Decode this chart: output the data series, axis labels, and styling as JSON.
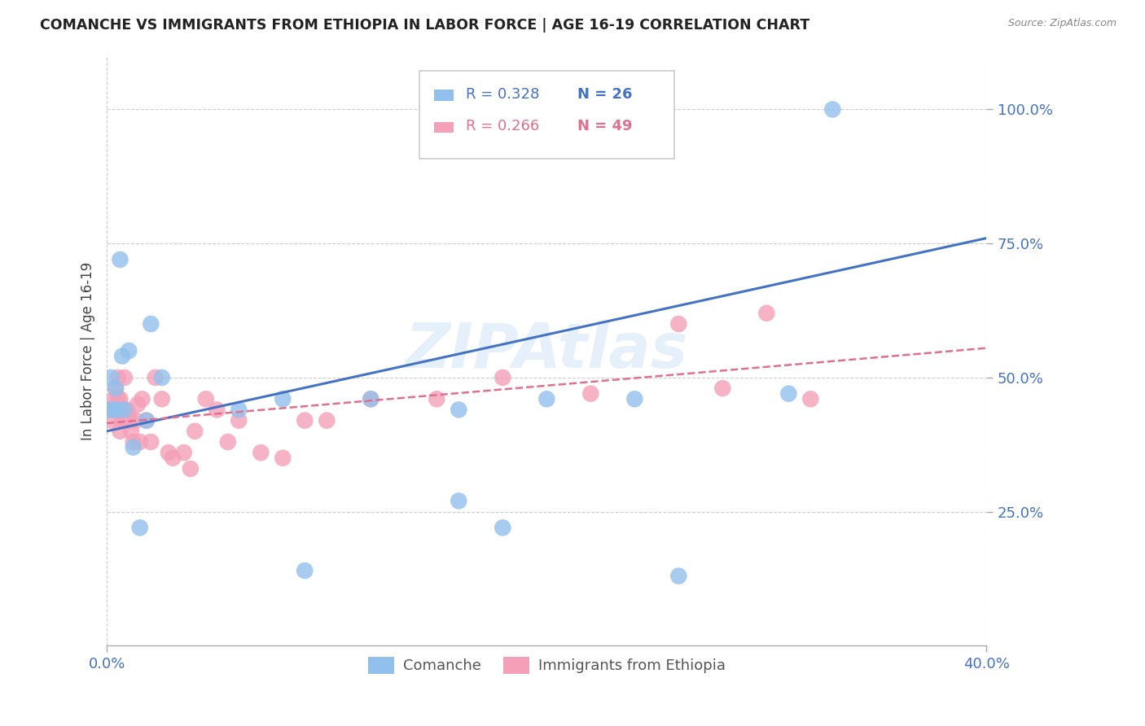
{
  "title": "COMANCHE VS IMMIGRANTS FROM ETHIOPIA IN LABOR FORCE | AGE 16-19 CORRELATION CHART",
  "source": "Source: ZipAtlas.com",
  "ylabel": "In Labor Force | Age 16-19",
  "xlim": [
    0.0,
    0.4
  ],
  "ylim": [
    0.0,
    1.1
  ],
  "yticks": [
    0.25,
    0.5,
    0.75,
    1.0
  ],
  "ytick_labels": [
    "25.0%",
    "50.0%",
    "75.0%",
    "100.0%"
  ],
  "xticks": [
    0.0,
    0.4
  ],
  "xtick_labels": [
    "0.0%",
    "40.0%"
  ],
  "watermark": "ZIPAtlas",
  "legend_R1": "0.328",
  "legend_N1": "26",
  "legend_R2": "0.266",
  "legend_N2": "49",
  "blue_color": "#92C0EC",
  "pink_color": "#F4A0B8",
  "line_blue": "#4472C4",
  "line_pink": "#E07090",
  "axis_color": "#4472C4",
  "comanche_x": [
    0.001,
    0.002,
    0.003,
    0.004,
    0.005,
    0.006,
    0.007,
    0.008,
    0.01,
    0.012,
    0.015,
    0.018,
    0.02,
    0.025,
    0.06,
    0.08,
    0.09,
    0.12,
    0.16,
    0.2,
    0.24,
    0.26,
    0.31,
    0.16,
    0.18,
    0.33
  ],
  "comanche_y": [
    0.44,
    0.5,
    0.44,
    0.48,
    0.44,
    0.72,
    0.54,
    0.44,
    0.55,
    0.37,
    0.22,
    0.42,
    0.6,
    0.5,
    0.44,
    0.46,
    0.14,
    0.46,
    0.44,
    0.46,
    0.46,
    0.13,
    0.47,
    0.27,
    0.22,
    1.0
  ],
  "ethiopia_x": [
    0.001,
    0.002,
    0.002,
    0.003,
    0.003,
    0.004,
    0.004,
    0.005,
    0.005,
    0.006,
    0.006,
    0.007,
    0.007,
    0.008,
    0.008,
    0.009,
    0.01,
    0.01,
    0.011,
    0.012,
    0.013,
    0.014,
    0.015,
    0.016,
    0.018,
    0.02,
    0.022,
    0.025,
    0.028,
    0.03,
    0.035,
    0.038,
    0.04,
    0.045,
    0.05,
    0.055,
    0.06,
    0.07,
    0.08,
    0.09,
    0.1,
    0.12,
    0.15,
    0.18,
    0.22,
    0.26,
    0.28,
    0.3,
    0.32
  ],
  "ethiopia_y": [
    0.44,
    0.44,
    0.42,
    0.46,
    0.44,
    0.48,
    0.44,
    0.5,
    0.46,
    0.4,
    0.46,
    0.44,
    0.42,
    0.5,
    0.42,
    0.44,
    0.42,
    0.43,
    0.4,
    0.38,
    0.42,
    0.45,
    0.38,
    0.46,
    0.42,
    0.38,
    0.5,
    0.46,
    0.36,
    0.35,
    0.36,
    0.33,
    0.4,
    0.46,
    0.44,
    0.38,
    0.42,
    0.36,
    0.35,
    0.42,
    0.42,
    0.46,
    0.46,
    0.5,
    0.47,
    0.6,
    0.48,
    0.62,
    0.46
  ],
  "blue_line_x": [
    0.0,
    0.4
  ],
  "blue_line_y": [
    0.4,
    0.76
  ],
  "pink_line_x": [
    0.0,
    0.4
  ],
  "pink_line_y": [
    0.415,
    0.555
  ]
}
